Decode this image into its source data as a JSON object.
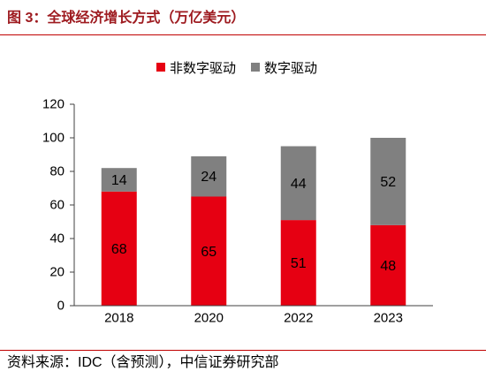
{
  "colors": {
    "title": "#9e1b20",
    "rule": "#c00000",
    "axis": "#404040"
  },
  "source": "资料来源：IDC（含预测），中信证券研究部",
  "chart_data": {
    "type": "bar",
    "stacked": true,
    "title": "图 3：全球经济增长方式（万亿美元）",
    "categories": [
      "2018",
      "2020",
      "2022",
      "2023"
    ],
    "series": [
      {
        "name": "非数字驱动",
        "values": [
          68,
          65,
          51,
          48
        ],
        "color": "#e60012"
      },
      {
        "name": "数字驱动",
        "values": [
          14,
          24,
          44,
          52
        ],
        "color": "#808080"
      }
    ],
    "ylim": [
      0,
      120
    ],
    "yticks": [
      0,
      20,
      40,
      60,
      80,
      100,
      120
    ],
    "grid": false,
    "legend_position": "top-center"
  }
}
